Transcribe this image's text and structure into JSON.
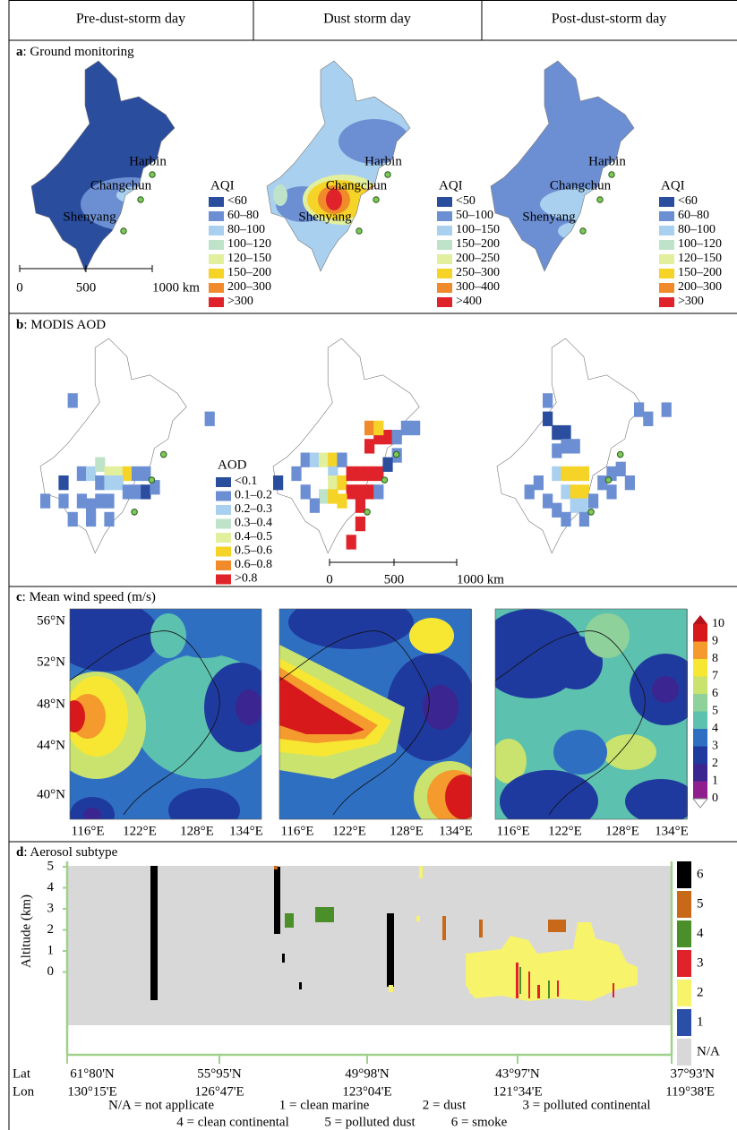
{
  "header": [
    "Pre-dust-storm day",
    "Dust storm day",
    "Post-dust-storm day"
  ],
  "panel_a": {
    "letter": "a",
    "title": ": Ground monitoring",
    "cities": [
      "Harbin",
      "Changchun",
      "Shenyang"
    ],
    "legend_title": "AQI",
    "legend_colors": [
      "#2a4d9e",
      "#6c8fd3",
      "#a9d0ee",
      "#bfe3c8",
      "#e2ef9c",
      "#f6d327",
      "#f08a2a",
      "#e0222a"
    ],
    "legends": [
      [
        "<60",
        "60–80",
        "80–100",
        "100–120",
        "120–150",
        "150–200",
        "200–300",
        ">300"
      ],
      [
        "<50",
        "50–100",
        "100–150",
        "150–200",
        "200–250",
        "250–300",
        "300–400",
        ">400"
      ],
      [
        "<60",
        "60–80",
        "80–100",
        "100–120",
        "120–150",
        "150–200",
        "200–300",
        ">300"
      ]
    ],
    "scale": [
      "0",
      "500",
      "1000 km"
    ]
  },
  "panel_b": {
    "letter": "b",
    "title": ": MODIS AOD",
    "legend_title": "AOD",
    "legend_colors": [
      "#2a4d9e",
      "#6c8fd3",
      "#a9d0ee",
      "#bfe3c8",
      "#e2ef9c",
      "#f6d327",
      "#f08a2a",
      "#e0222a"
    ],
    "legend": [
      "<0.1",
      "0.1–0.2",
      "0.2–0.3",
      "0.3–0.4",
      "0.4–0.5",
      "0.5–0.6",
      "0.6–0.8",
      ">0.8"
    ],
    "scale": [
      "0",
      "500",
      "1000 km"
    ]
  },
  "panel_c": {
    "letter": "c",
    "title": ": Mean wind speed (m/s)",
    "yticks": [
      "56°N",
      "52°N",
      "48°N",
      "44°N",
      "40°N"
    ],
    "xticks": [
      "116°E",
      "122°E",
      "128°E",
      "134°E"
    ],
    "colorbar": [
      "10",
      "9",
      "8",
      "7",
      "6",
      "5",
      "4",
      "3",
      "2",
      "1",
      "0"
    ],
    "colorbar_colors": [
      "#d7191c",
      "#f59a2c",
      "#f7e733",
      "#c9e36e",
      "#8fd19b",
      "#5cc1ae",
      "#2f6fc2",
      "#1f3a9e",
      "#3b2590",
      "#8e1f8c"
    ]
  },
  "panel_d": {
    "letter": "d",
    "title": ": Aerosol subtype",
    "ylabel": "Altitude (km)",
    "yticks": [
      "5",
      "4",
      "3",
      "2",
      "1",
      "0"
    ],
    "legend": [
      {
        "label": "6",
        "color": "#000000"
      },
      {
        "label": "5",
        "color": "#c8691a"
      },
      {
        "label": "4",
        "color": "#4a8f2a"
      },
      {
        "label": "3",
        "color": "#e0222a"
      },
      {
        "label": "2",
        "color": "#f7f36a"
      },
      {
        "label": "1",
        "color": "#2a4fa8"
      },
      {
        "label": "N/A",
        "color": "#d8d8d8"
      }
    ],
    "lat_label": "Lat",
    "lon_label": "Lon",
    "points": [
      {
        "lat": "61°80'N",
        "lon": "130°15'E"
      },
      {
        "lat": "55°95'N",
        "lon": "126°47'E"
      },
      {
        "lat": "49°98'N",
        "lon": "123°04'E"
      },
      {
        "lat": "43°97'N",
        "lon": "121°34'E"
      },
      {
        "lat": "37°93'N",
        "lon": "119°38'E"
      }
    ],
    "notes": [
      [
        "N/A = not applicate",
        "1 = clean marine",
        "2 = dust",
        "3 = polluted continental"
      ],
      [
        "4 = clean continental",
        "5 = polluted dust",
        "6 = smoke"
      ]
    ]
  }
}
